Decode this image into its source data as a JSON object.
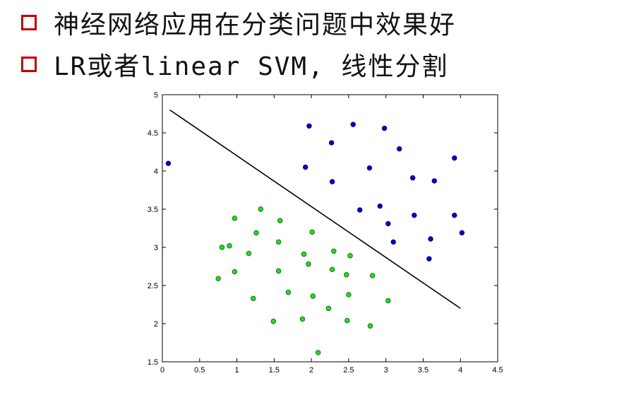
{
  "bullets": [
    "神经网络应用在分类问题中效果好",
    "LR或者linear SVM, 线性分割"
  ],
  "colors": {
    "bullet_box": "#c00000",
    "class_a": "#0000cc",
    "class_b": "#22dd22",
    "boundary_line": "#000000"
  },
  "chart_data": {
    "type": "scatter",
    "title": "",
    "xlabel": "",
    "ylabel": "",
    "xlim": [
      0,
      4.5
    ],
    "ylim": [
      1.5,
      5
    ],
    "xticks": [
      "0",
      "0.5",
      "1",
      "1.5",
      "2",
      "2.5",
      "3",
      "3.5",
      "4",
      "4.5"
    ],
    "yticks": [
      "1.5",
      "2",
      "2.5",
      "3",
      "3.5",
      "4",
      "4.5",
      "5"
    ],
    "grid": false,
    "series": [
      {
        "color": "#0000cc",
        "points": [
          [
            0.08,
            4.1
          ],
          [
            1.97,
            4.59
          ],
          [
            2.56,
            4.61
          ],
          [
            2.98,
            4.56
          ],
          [
            2.27,
            4.37
          ],
          [
            3.18,
            4.29
          ],
          [
            3.92,
            4.17
          ],
          [
            1.92,
            4.05
          ],
          [
            2.78,
            4.04
          ],
          [
            3.36,
            3.91
          ],
          [
            2.28,
            3.86
          ],
          [
            3.65,
            3.87
          ],
          [
            2.65,
            3.49
          ],
          [
            2.92,
            3.54
          ],
          [
            3.38,
            3.42
          ],
          [
            3.92,
            3.42
          ],
          [
            3.03,
            3.31
          ],
          [
            4.02,
            3.19
          ],
          [
            3.6,
            3.11
          ],
          [
            3.1,
            3.07
          ],
          [
            3.58,
            2.85
          ]
        ]
      },
      {
        "color": "#22dd22",
        "points": [
          [
            1.32,
            3.5
          ],
          [
            0.97,
            3.38
          ],
          [
            1.58,
            3.35
          ],
          [
            1.26,
            3.19
          ],
          [
            2.01,
            3.2
          ],
          [
            0.8,
            3.0
          ],
          [
            0.9,
            3.02
          ],
          [
            1.56,
            3.07
          ],
          [
            1.16,
            2.92
          ],
          [
            1.9,
            2.91
          ],
          [
            2.3,
            2.95
          ],
          [
            2.52,
            2.89
          ],
          [
            1.96,
            2.78
          ],
          [
            0.97,
            2.68
          ],
          [
            1.56,
            2.69
          ],
          [
            2.28,
            2.71
          ],
          [
            0.75,
            2.59
          ],
          [
            2.47,
            2.64
          ],
          [
            2.82,
            2.63
          ],
          [
            1.69,
            2.41
          ],
          [
            2.02,
            2.36
          ],
          [
            2.5,
            2.38
          ],
          [
            1.22,
            2.33
          ],
          [
            3.03,
            2.3
          ],
          [
            2.23,
            2.2
          ],
          [
            1.49,
            2.03
          ],
          [
            1.88,
            2.06
          ],
          [
            2.48,
            2.04
          ],
          [
            2.79,
            1.97
          ],
          [
            2.09,
            1.62
          ]
        ]
      }
    ],
    "line": {
      "color": "#000000",
      "points": [
        [
          0.1,
          4.8
        ],
        [
          4.0,
          2.2
        ]
      ]
    }
  }
}
